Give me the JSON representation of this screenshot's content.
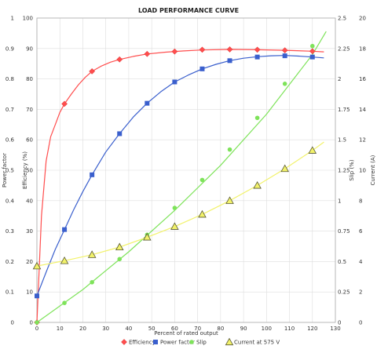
{
  "chart_data": {
    "type": "scatter",
    "title": "LOAD PERFORMANCE CURVE",
    "xlabel": "Percent of rated output",
    "xlim": [
      0,
      130
    ],
    "x_ticks": [
      "0",
      "10",
      "20",
      "30",
      "40",
      "50",
      "60",
      "70",
      "80",
      "90",
      "100",
      "110",
      "120",
      "130"
    ],
    "left_axes": [
      {
        "label": "Power factor",
        "range": [
          0,
          1
        ],
        "ticks": [
          "0",
          "0.1",
          "0.2",
          "0.3",
          "0.4",
          "0.5",
          "0.6",
          "0.7",
          "0.8",
          "0.9",
          "1"
        ]
      },
      {
        "label": "Efficiency (%)",
        "range": [
          0,
          100
        ],
        "ticks": [
          "0",
          "10",
          "20",
          "30",
          "40",
          "50",
          "60",
          "70",
          "80",
          "90",
          "100"
        ]
      }
    ],
    "right_axes": [
      {
        "label": "Slip (%)",
        "range": [
          0,
          2.5
        ],
        "ticks": [
          "0",
          "0.25",
          "0.5",
          "0.75",
          "1",
          "1.25",
          "1.5",
          "1.75",
          "2",
          "2.25",
          "2.5"
        ]
      },
      {
        "label": "Current (A)",
        "range": [
          0,
          20
        ],
        "ticks": [
          "0",
          "2",
          "4",
          "6",
          "8",
          "10",
          "12",
          "14",
          "16",
          "18",
          "20"
        ]
      }
    ],
    "grid": true,
    "legend_position": "bottom",
    "series": [
      {
        "name": "Efficiency",
        "axis": "Efficiency (%)",
        "color": "#ff4d4d",
        "marker": "diamond",
        "x": [
          0,
          12,
          24,
          36,
          48,
          60,
          72,
          84,
          96,
          108,
          120
        ],
        "y": [
          0,
          71.8,
          82.5,
          86.4,
          88.2,
          89.0,
          89.6,
          89.7,
          89.6,
          89.4,
          89.1
        ],
        "curve_x": [
          0,
          2,
          4,
          6,
          8,
          10,
          12,
          15,
          18,
          21,
          24,
          28,
          32,
          36,
          42,
          48,
          56,
          64,
          72,
          84,
          96,
          108,
          120,
          125
        ],
        "curve_y": [
          0,
          35,
          53,
          61,
          65,
          69,
          71.8,
          75,
          78,
          80.5,
          82.5,
          84.2,
          85.5,
          86.4,
          87.4,
          88.2,
          88.8,
          89.2,
          89.5,
          89.7,
          89.6,
          89.4,
          89.1,
          88.9
        ]
      },
      {
        "name": "Power factor",
        "axis": "Efficiency (%)",
        "color": "#3a5fcd",
        "marker": "square",
        "x": [
          0,
          12,
          24,
          36,
          48,
          60,
          72,
          84,
          96,
          108,
          120
        ],
        "y": [
          8.7,
          30.5,
          48.5,
          62.0,
          72.0,
          79.0,
          83.3,
          86.0,
          87.2,
          87.6,
          87.2
        ],
        "curve_x": [
          0,
          4,
          8,
          12,
          16,
          20,
          24,
          30,
          36,
          42,
          48,
          54,
          60,
          66,
          72,
          78,
          84,
          90,
          96,
          102,
          108,
          114,
          120,
          125
        ],
        "curve_y": [
          8.7,
          16.5,
          24,
          30.5,
          37,
          43,
          48.5,
          56,
          62,
          67.5,
          72,
          75.8,
          79,
          81.3,
          83.3,
          84.8,
          86,
          86.8,
          87.3,
          87.6,
          87.7,
          87.5,
          87.2,
          86.9
        ]
      },
      {
        "name": "Slip",
        "axis": "Slip (%)",
        "color": "#7ee35a",
        "marker": "circle",
        "x": [
          0,
          12,
          24,
          36,
          48,
          60,
          72,
          84,
          96,
          108,
          120
        ],
        "y": [
          0,
          0.16,
          0.33,
          0.52,
          0.72,
          0.94,
          1.17,
          1.42,
          1.68,
          1.96,
          2.27
        ],
        "curve_x": [
          0,
          20,
          40,
          60,
          80,
          100,
          120,
          126
        ],
        "curve_y": [
          0,
          0.27,
          0.58,
          0.92,
          1.29,
          1.71,
          2.2,
          2.39
        ]
      },
      {
        "name": "Current at 575 V",
        "axis": "Current (A)",
        "color": "#f2f26a",
        "marker": "triangle",
        "x": [
          0,
          12,
          24,
          36,
          48,
          60,
          72,
          84,
          96,
          108,
          120
        ],
        "y": [
          3.7,
          4.05,
          4.45,
          4.95,
          5.6,
          6.3,
          7.1,
          8.0,
          9.0,
          10.1,
          11.3
        ],
        "curve_x": [
          0,
          12,
          24,
          36,
          48,
          60,
          72,
          84,
          96,
          108,
          120,
          125
        ],
        "curve_y": [
          3.7,
          4.05,
          4.45,
          4.95,
          5.6,
          6.3,
          7.1,
          8.0,
          9.0,
          10.1,
          11.3,
          11.85
        ]
      }
    ]
  }
}
